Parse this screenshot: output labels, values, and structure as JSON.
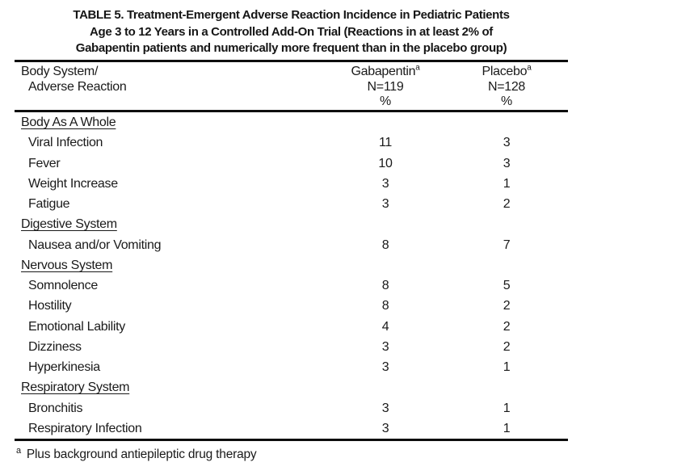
{
  "table": {
    "title_lines": [
      "TABLE 5. Treatment-Emergent Adverse Reaction Incidence in Pediatric Patients",
      "Age 3 to 12 Years in a Controlled Add-On Trial (Reactions in at least 2% of",
      "Gabapentin patients and numerically more frequent than in the placebo group)"
    ],
    "header": {
      "col1_line1": "Body System/",
      "col1_line2": "Adverse Reaction",
      "col2": {
        "name": "Gabapentin",
        "sup": "a",
        "n": "N=119",
        "pct": "%"
      },
      "col3": {
        "name": "Placebo",
        "sup": "a",
        "n": "N=128",
        "pct": "%"
      }
    },
    "sections": [
      {
        "name": "Body As A Whole",
        "rows": [
          {
            "label": "Viral Infection",
            "gabapentin": "11",
            "placebo": "3"
          },
          {
            "label": "Fever",
            "gabapentin": "10",
            "placebo": "3"
          },
          {
            "label": "Weight Increase",
            "gabapentin": "3",
            "placebo": "1"
          },
          {
            "label": "Fatigue",
            "gabapentin": "3",
            "placebo": "2"
          }
        ]
      },
      {
        "name": "Digestive System",
        "rows": [
          {
            "label": "Nausea and/or Vomiting",
            "gabapentin": "8",
            "placebo": "7"
          }
        ]
      },
      {
        "name": "Nervous System",
        "rows": [
          {
            "label": "Somnolence",
            "gabapentin": "8",
            "placebo": "5"
          },
          {
            "label": "Hostility",
            "gabapentin": "8",
            "placebo": "2"
          },
          {
            "label": "Emotional Lability",
            "gabapentin": "4",
            "placebo": "2"
          },
          {
            "label": "Dizziness",
            "gabapentin": "3",
            "placebo": "2"
          },
          {
            "label": "Hyperkinesia",
            "gabapentin": "3",
            "placebo": "1"
          }
        ]
      },
      {
        "name": "Respiratory System",
        "rows": [
          {
            "label": "Bronchitis",
            "gabapentin": "3",
            "placebo": "1"
          },
          {
            "label": "Respiratory Infection",
            "gabapentin": "3",
            "placebo": "1"
          }
        ]
      }
    ],
    "footnote": {
      "marker": "a",
      "text": "Plus background antiepileptic drug therapy"
    }
  }
}
